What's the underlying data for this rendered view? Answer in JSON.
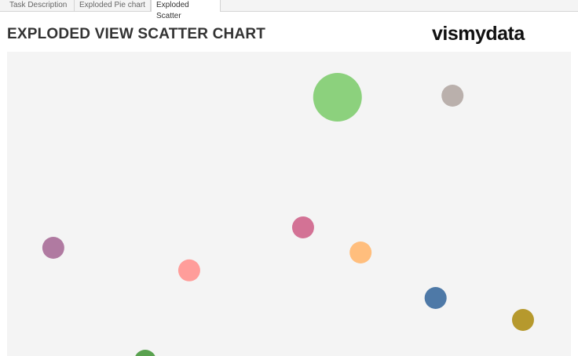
{
  "tabs": [
    {
      "label": "Task Description"
    },
    {
      "label": "Exploded Pie chart"
    },
    {
      "label": "Exploded Scatter",
      "active": true
    }
  ],
  "header": {
    "title": "EXPLODED VIEW SCATTER CHART",
    "logo": "vismydata"
  },
  "chart_data": {
    "type": "scatter",
    "title": "EXPLODED VIEW SCATTER CHART",
    "xlabel": "",
    "ylabel": "",
    "axes_visible": false,
    "grid": false,
    "legend": "none",
    "xlim": [
      0,
      100
    ],
    "ylim": [
      0,
      100
    ],
    "points": [
      {
        "x": 58.6,
        "y": 85.5,
        "size": 4.9,
        "color": "#8cd17d"
      },
      {
        "x": 79.0,
        "y": 86.0,
        "size": 1,
        "color": "#bab0ac"
      },
      {
        "x": 52.5,
        "y": 44.0,
        "size": 1,
        "color": "#d37295"
      },
      {
        "x": 8.2,
        "y": 37.5,
        "size": 1,
        "color": "#b07aa1"
      },
      {
        "x": 62.7,
        "y": 36.0,
        "size": 1,
        "color": "#ffbe7d"
      },
      {
        "x": 32.3,
        "y": 30.3,
        "size": 1,
        "color": "#ff9d9a"
      },
      {
        "x": 76.0,
        "y": 21.5,
        "size": 1,
        "color": "#4e79a7"
      },
      {
        "x": 91.5,
        "y": 14.5,
        "size": 1,
        "color": "#b6992d"
      },
      {
        "x": 24.5,
        "y": 1.5,
        "size": 1,
        "color": "#59a14f"
      }
    ]
  }
}
